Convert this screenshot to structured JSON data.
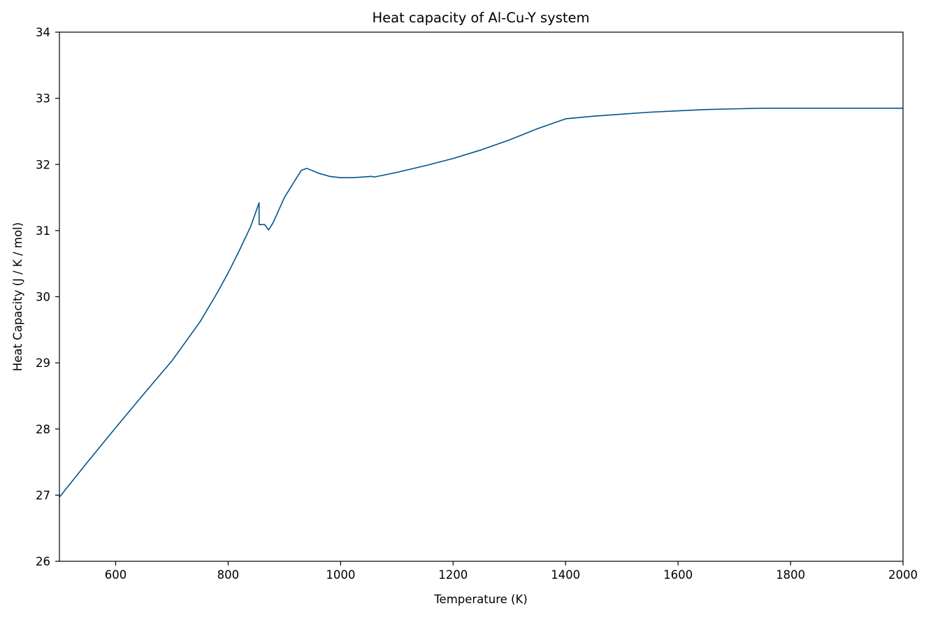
{
  "chart_data": {
    "type": "line",
    "title": "Heat capacity of Al-Cu-Y system",
    "xlabel": "Temperature (K)",
    "ylabel": "Heat Capacity (J / K / mol)",
    "xlim": [
      500,
      2000
    ],
    "ylim": [
      26,
      34
    ],
    "x_ticks": [
      600,
      800,
      1000,
      1200,
      1400,
      1600,
      1800,
      2000
    ],
    "y_ticks": [
      26,
      27,
      28,
      29,
      30,
      31,
      32,
      33,
      34
    ],
    "x_tick_labels": [
      "600",
      "800",
      "1000",
      "1200",
      "1400",
      "1600",
      "1800",
      "2000"
    ],
    "y_tick_labels": [
      "26",
      "27",
      "28",
      "29",
      "30",
      "31",
      "32",
      "33",
      "34"
    ],
    "grid": false,
    "legend": "none",
    "line_color": "#00538a",
    "series": [
      {
        "x": [
          500,
          550,
          600,
          650,
          700,
          750,
          780,
          800,
          820,
          840,
          855,
          855.1,
          865,
          872,
          880,
          900,
          930,
          940,
          960,
          980,
          1000,
          1020,
          1040,
          1055,
          1060,
          1100,
          1150,
          1200,
          1250,
          1300,
          1350,
          1400,
          1450,
          1500,
          1550,
          1600,
          1650,
          1700,
          1750,
          1800,
          1850,
          1900,
          1950,
          2000
        ],
        "values": [
          26.97,
          27.5,
          28.02,
          28.53,
          29.03,
          29.62,
          30.05,
          30.36,
          30.7,
          31.06,
          31.42,
          31.09,
          31.09,
          31.01,
          31.12,
          31.5,
          31.91,
          31.94,
          31.87,
          31.82,
          31.8,
          31.8,
          31.81,
          31.82,
          31.81,
          31.88,
          31.98,
          32.09,
          32.22,
          32.37,
          32.54,
          32.69,
          32.73,
          32.76,
          32.79,
          32.81,
          32.83,
          32.84,
          32.85,
          32.85,
          32.85,
          32.85,
          32.85,
          32.85
        ]
      }
    ]
  }
}
